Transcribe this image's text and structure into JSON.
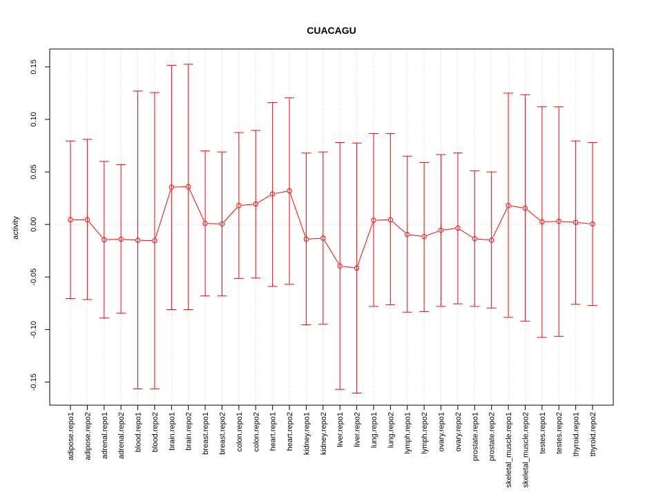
{
  "chart_data": {
    "type": "line",
    "title": "CUACAGU",
    "xlabel": "",
    "ylabel": "activity",
    "ylim": [
      -0.172,
      0.167
    ],
    "y_ticks": [
      -0.15,
      -0.1,
      -0.05,
      0.0,
      0.05,
      0.1,
      0.15
    ],
    "y_tick_labels": [
      "-0.15",
      "-0.10",
      "-0.05",
      "0.00",
      "0.05",
      "0.10",
      "0.15"
    ],
    "grid": true,
    "color": "#ff0000",
    "categories": [
      "adipose.repo1",
      "adipose.repo2",
      "adrenal.repo1",
      "adrenal.repo2",
      "blood.repo1",
      "blood.repo2",
      "brain.repo1",
      "brain.repo2",
      "breast.repo1",
      "breast.repo2",
      "colon.repo1",
      "colon.repo2",
      "heart.repo1",
      "heart.repo2",
      "kidney.repo1",
      "kidney.repo2",
      "liver.repo1",
      "liver.repo2",
      "lung.repo1",
      "lung.repo2",
      "lymph.repo1",
      "lymph.repo2",
      "ovary.repo1",
      "ovary.repo2",
      "prostate.repo1",
      "prostate.repo2",
      "skeletal_muscle.repo1",
      "skeletal_muscle.repo2",
      "testes.repo1",
      "testes.repo2",
      "thyroid.repo1",
      "thyroid.repo2"
    ],
    "values": [
      0.0045,
      0.0045,
      -0.0145,
      -0.014,
      -0.015,
      -0.0155,
      0.0355,
      0.036,
      0.001,
      0.0005,
      0.018,
      0.0195,
      0.029,
      0.032,
      -0.014,
      -0.013,
      -0.0395,
      -0.0415,
      0.004,
      0.0045,
      -0.0095,
      -0.0115,
      -0.0055,
      -0.0035,
      -0.0135,
      -0.015,
      0.018,
      0.0155,
      0.0025,
      0.003,
      0.002,
      0.0005
    ],
    "upper": [
      0.0795,
      0.081,
      0.06,
      0.057,
      0.127,
      0.1255,
      0.1515,
      0.1525,
      0.07,
      0.069,
      0.0875,
      0.0895,
      0.116,
      0.1205,
      0.068,
      0.069,
      0.078,
      0.0775,
      0.0865,
      0.0865,
      0.065,
      0.059,
      0.0665,
      0.068,
      0.051,
      0.05,
      0.125,
      0.1235,
      0.112,
      0.112,
      0.0795,
      0.078
    ],
    "lower": [
      -0.0705,
      -0.0715,
      -0.089,
      -0.0845,
      -0.1565,
      -0.1565,
      -0.081,
      -0.081,
      -0.068,
      -0.068,
      -0.0515,
      -0.051,
      -0.059,
      -0.057,
      -0.0955,
      -0.095,
      -0.157,
      -0.1605,
      -0.078,
      -0.0765,
      -0.0835,
      -0.083,
      -0.078,
      -0.0755,
      -0.078,
      -0.0795,
      -0.0885,
      -0.092,
      -0.1075,
      -0.1065,
      -0.076,
      -0.077
    ]
  }
}
